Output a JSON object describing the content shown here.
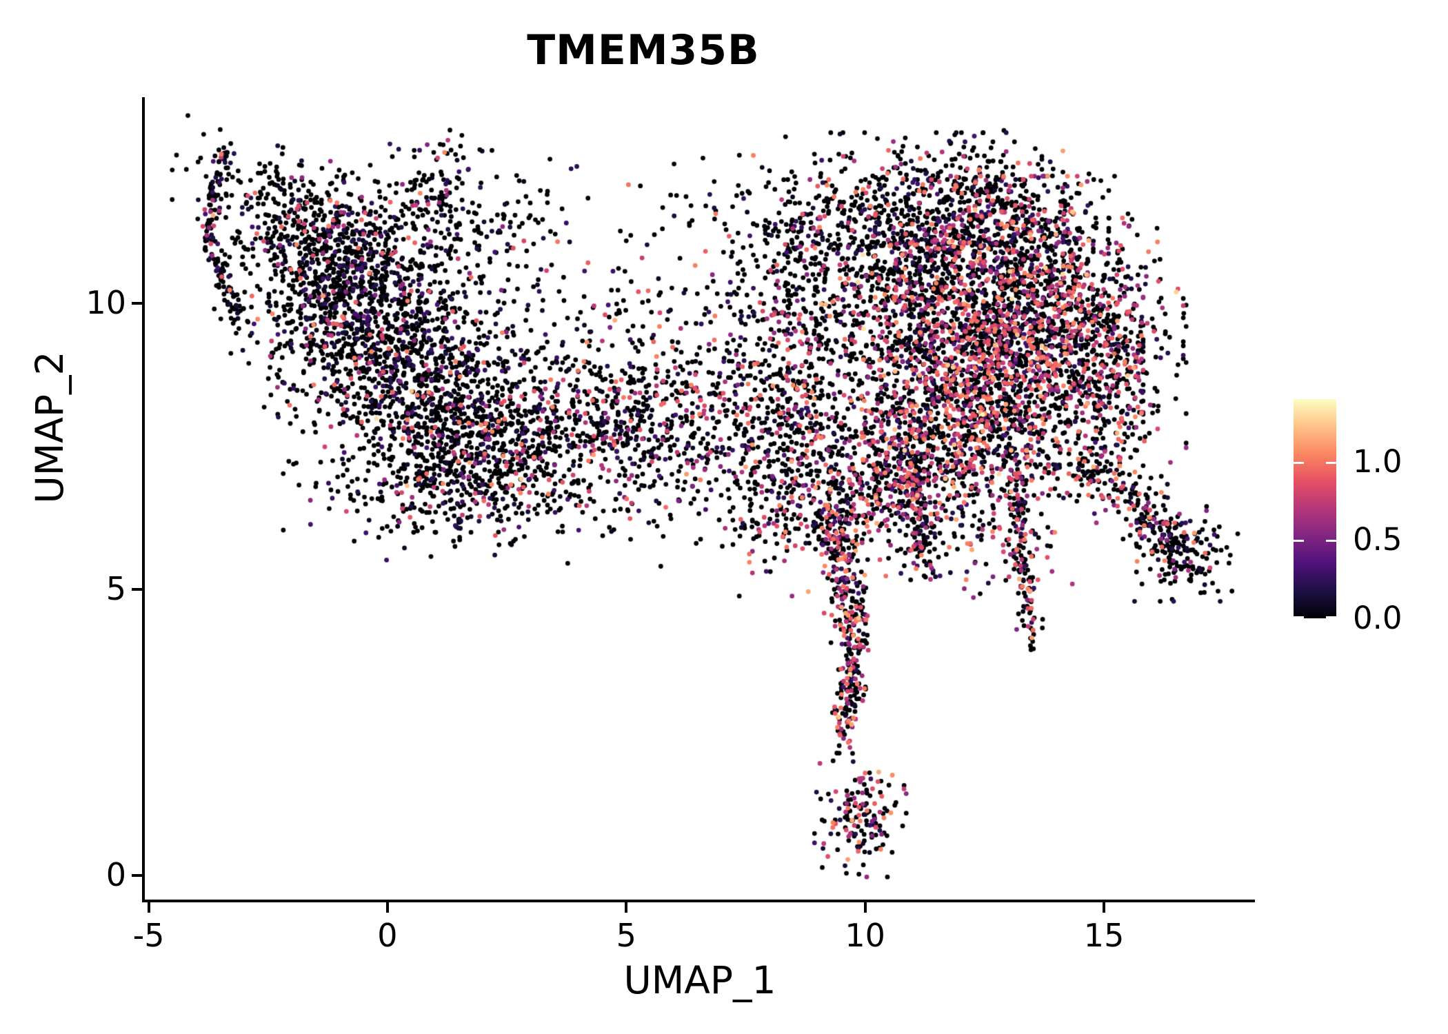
{
  "header": {
    "title": "TMEM35B"
  },
  "colors": {
    "background": "#ffffff",
    "axis": "#000000",
    "text": "#000000",
    "point_zero": "#000004"
  },
  "chart_data": {
    "type": "scatter",
    "title": "TMEM35B",
    "xlabel": "UMAP_1",
    "ylabel": "UMAP_2",
    "grid": false,
    "legend_position": "right",
    "x_domain": [
      -5.08,
      18.16
    ],
    "y_domain": [
      -0.45,
      13.6
    ],
    "x_tick_values": [
      -5,
      0,
      5,
      10,
      15
    ],
    "x_tick_labels": [
      "-5",
      "0",
      "5",
      "10",
      "15"
    ],
    "y_tick_values": [
      0,
      5,
      10
    ],
    "y_tick_labels": [
      "0",
      "5",
      "10"
    ],
    "point_radius": 3.4,
    "color_value_max": 1.4,
    "colormap": "magma",
    "colormap_stops": [
      "#000004",
      "#1C1044",
      "#4F127B",
      "#812581",
      "#B5367A",
      "#E55064",
      "#FB8761",
      "#FEC287",
      "#FCFDBF"
    ],
    "colorbar": {
      "tick_labels": [
        "1.0",
        "0.5",
        "0.0"
      ],
      "tick_values": [
        1.0,
        0.5,
        0.0
      ],
      "max_value": 1.4
    },
    "seed": 42,
    "clusters": [
      {
        "type": "strand",
        "name": "crescent-tip",
        "x1": -3.42,
        "y1": 12.62,
        "x2": -3.8,
        "y2": 11.3,
        "sd": 0.11,
        "n": 70,
        "p_mid": 0.12,
        "p_high": 0.01
      },
      {
        "type": "strand",
        "name": "crescent-lower",
        "x1": -3.8,
        "y1": 11.3,
        "x2": -3.15,
        "y2": 9.75,
        "sd": 0.12,
        "n": 80,
        "p_mid": 0.08,
        "p_high": 0.005
      },
      {
        "type": "blob",
        "name": "upper-left-band",
        "cx": -1.45,
        "cy": 11.25,
        "sx": 1.35,
        "sy": 0.52,
        "rot": -19,
        "n": 430,
        "p_mid": 0.05,
        "p_high": 0.003
      },
      {
        "type": "blob",
        "name": "upper-left-arc",
        "cx": 0.9,
        "cy": 11.55,
        "sx": 1.0,
        "sy": 0.42,
        "rot": -10,
        "n": 110,
        "p_mid": 0.06,
        "p_high": 0.004
      },
      {
        "type": "blob",
        "name": "upper-left-clump",
        "cx": 1.0,
        "cy": 11.8,
        "sx": 0.3,
        "sy": 0.2,
        "rot": 0,
        "n": 45,
        "p_mid": 0.05,
        "p_high": 0
      },
      {
        "type": "blob",
        "name": "top-small-clump",
        "cx": 1.1,
        "cy": 12.65,
        "sx": 0.45,
        "sy": 0.26,
        "rot": 0,
        "n": 25,
        "p_mid": 0.07,
        "p_high": 0
      },
      {
        "type": "blob",
        "name": "top-gap-scatter",
        "cx": 2.6,
        "cy": 11.35,
        "sx": 0.75,
        "sy": 0.55,
        "rot": 0,
        "n": 70,
        "p_mid": 0.05,
        "p_high": 0.005
      },
      {
        "type": "blob",
        "name": "left-blob-upper",
        "cx": -0.9,
        "cy": 10.0,
        "sx": 1.05,
        "sy": 0.75,
        "rot": -25,
        "n": 760,
        "p_mid": 0.07,
        "p_high": 0.004
      },
      {
        "type": "blob",
        "name": "left-blob-core",
        "cx": 0.8,
        "cy": 8.7,
        "sx": 1.35,
        "sy": 0.95,
        "rot": -10,
        "n": 1000,
        "p_mid": 0.09,
        "p_high": 0.005
      },
      {
        "type": "blob",
        "name": "left-blob-lower",
        "cx": 1.8,
        "cy": 7.4,
        "sx": 1.05,
        "sy": 0.65,
        "rot": 0,
        "n": 430,
        "p_mid": 0.1,
        "p_high": 0.006
      },
      {
        "type": "blob",
        "name": "left-blob-fringe",
        "cx": 1.3,
        "cy": 6.5,
        "sx": 1.45,
        "sy": 0.45,
        "rot": 0,
        "n": 130,
        "p_mid": 0.1,
        "p_high": 0.005
      },
      {
        "type": "blob",
        "name": "bridge",
        "cx": 4.9,
        "cy": 7.9,
        "sx": 1.7,
        "sy": 0.6,
        "rot": 0,
        "n": 640,
        "p_mid": 0.13,
        "p_high": 0.01
      },
      {
        "type": "blob",
        "name": "bridge-upper-sparse",
        "cx": 5.6,
        "cy": 9.5,
        "sx": 1.4,
        "sy": 0.75,
        "rot": 0,
        "n": 150,
        "p_mid": 0.08,
        "p_high": 0.005
      },
      {
        "type": "blob",
        "name": "mid-top-sparse",
        "cx": 6.6,
        "cy": 11.6,
        "sx": 0.8,
        "sy": 0.5,
        "rot": 0,
        "n": 40,
        "p_mid": 0.05,
        "p_high": 0
      },
      {
        "type": "blob",
        "name": "bridge-lower-sparse",
        "cx": 5.4,
        "cy": 6.6,
        "sx": 1.7,
        "sy": 0.5,
        "rot": 0,
        "n": 110,
        "p_mid": 0.12,
        "p_high": 0.01
      },
      {
        "type": "blob",
        "name": "connector",
        "cx": 8.3,
        "cy": 8.1,
        "sx": 0.85,
        "sy": 1.0,
        "rot": 0,
        "n": 390,
        "p_mid": 0.2,
        "p_high": 0.02
      },
      {
        "type": "blob",
        "name": "right-blob-topleft-sparse",
        "cx": 9.0,
        "cy": 11.0,
        "sx": 0.9,
        "sy": 0.8,
        "rot": 0,
        "n": 140,
        "p_mid": 0.1,
        "p_high": 0.01
      },
      {
        "type": "blob",
        "name": "bay-scatter",
        "cx": 8.6,
        "cy": 10.2,
        "sx": 0.85,
        "sy": 0.6,
        "rot": 0,
        "n": 120,
        "p_mid": 0.12,
        "p_high": 0.01
      },
      {
        "type": "blob",
        "name": "right-blob-top-arc",
        "cx": 10.9,
        "cy": 11.3,
        "sx": 1.35,
        "sy": 0.7,
        "rot": 0,
        "n": 600,
        "p_mid": 0.12,
        "p_high": 0.012
      },
      {
        "type": "blob",
        "name": "right-blob-top-right",
        "cx": 12.7,
        "cy": 11.5,
        "sx": 1.0,
        "sy": 0.55,
        "rot": 0,
        "n": 300,
        "p_mid": 0.18,
        "p_high": 0.02
      },
      {
        "type": "blob",
        "name": "right-blob-core",
        "cx": 12.1,
        "cy": 9.4,
        "sx": 1.55,
        "sy": 1.15,
        "rot": 0,
        "n": 1900,
        "p_mid": 0.3,
        "p_high": 0.03
      },
      {
        "type": "blob",
        "name": "right-blob-right",
        "cx": 13.9,
        "cy": 9.7,
        "sx": 1.15,
        "sy": 1.05,
        "rot": 0,
        "n": 850,
        "p_mid": 0.27,
        "p_high": 0.03
      },
      {
        "type": "blob",
        "name": "right-blob-bottom",
        "cx": 11.7,
        "cy": 7.5,
        "sx": 1.35,
        "sy": 0.75,
        "rot": 0,
        "n": 700,
        "p_mid": 0.3,
        "p_high": 0.035
      },
      {
        "type": "blob",
        "name": "right-blob-east-edge",
        "cx": 15.4,
        "cy": 8.8,
        "sx": 0.55,
        "sy": 1.1,
        "rot": 0,
        "n": 260,
        "p_mid": 0.22,
        "p_high": 0.02
      },
      {
        "type": "blob",
        "name": "tail-funnel",
        "cx": 9.8,
        "cy": 6.7,
        "sx": 0.9,
        "sy": 0.6,
        "rot": 0,
        "n": 290,
        "p_mid": 0.3,
        "p_high": 0.04
      },
      {
        "type": "strand",
        "name": "spur-inner",
        "x1": 10.9,
        "y1": 7.4,
        "x2": 11.3,
        "y2": 5.3,
        "sd": 0.2,
        "n": 130,
        "p_mid": 0.32,
        "p_high": 0.04
      },
      {
        "type": "strand",
        "name": "spur-outer",
        "x1": 13.2,
        "y1": 7.0,
        "x2": 13.45,
        "y2": 4.1,
        "sd": 0.17,
        "n": 140,
        "p_mid": 0.22,
        "p_high": 0.03
      },
      {
        "type": "blob",
        "name": "below-blob-sparse",
        "cx": 12.4,
        "cy": 5.9,
        "sx": 1.0,
        "sy": 0.55,
        "rot": 0,
        "n": 90,
        "p_mid": 0.25,
        "p_high": 0.02
      },
      {
        "type": "strand",
        "name": "tail-upper",
        "x1": 9.35,
        "y1": 6.3,
        "x2": 9.8,
        "y2": 4.2,
        "sd": 0.3,
        "n": 240,
        "p_mid": 0.32,
        "p_high": 0.05
      },
      {
        "type": "strand",
        "name": "tail-lower",
        "x1": 9.8,
        "y1": 4.2,
        "x2": 9.55,
        "y2": 2.3,
        "sd": 0.22,
        "n": 150,
        "p_mid": 0.33,
        "p_high": 0.05
      },
      {
        "type": "blob",
        "name": "tail-tip-clump",
        "cx": 9.9,
        "cy": 1.05,
        "sx": 0.4,
        "sy": 0.45,
        "rot": 0,
        "n": 150,
        "p_mid": 0.28,
        "p_high": 0.04
      },
      {
        "type": "blob",
        "name": "left-of-tail-sparse",
        "cx": 8.2,
        "cy": 6.2,
        "sx": 0.6,
        "sy": 0.55,
        "rot": 0,
        "n": 70,
        "p_mid": 0.25,
        "p_high": 0.02
      },
      {
        "type": "strand",
        "name": "east-extension",
        "x1": 14.5,
        "y1": 7.3,
        "x2": 16.5,
        "y2": 5.9,
        "sd": 0.22,
        "n": 150,
        "p_mid": 0.2,
        "p_high": 0.02
      },
      {
        "type": "blob",
        "name": "east-extension-clump",
        "cx": 16.6,
        "cy": 5.7,
        "sx": 0.5,
        "sy": 0.38,
        "rot": 0,
        "n": 170,
        "p_mid": 0.15,
        "p_high": 0.01
      },
      {
        "type": "blob",
        "name": "top-right-outliers",
        "cx": 12.5,
        "cy": 12.55,
        "sx": 0.5,
        "sy": 0.3,
        "rot": 0,
        "n": 25,
        "p_mid": 0.1,
        "p_high": 0
      }
    ]
  }
}
